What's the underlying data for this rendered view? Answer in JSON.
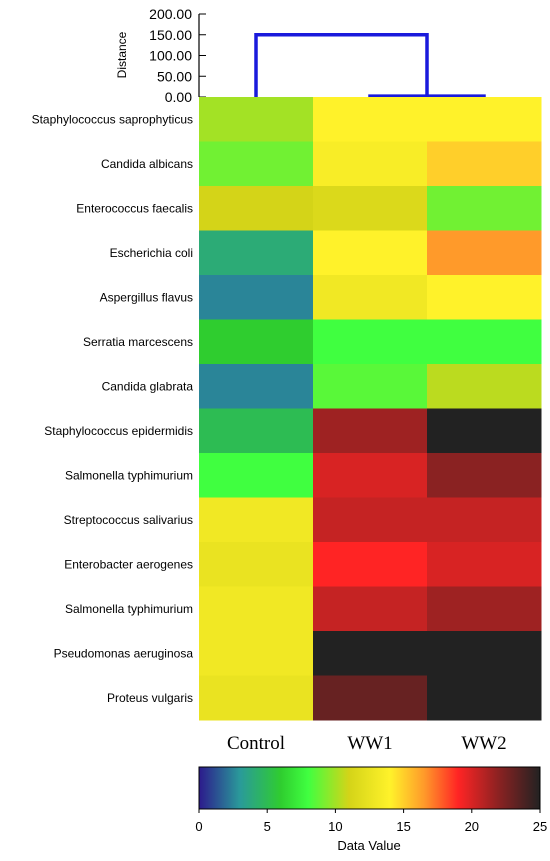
{
  "chart_data": {
    "type": "heatmap",
    "title": "",
    "rows": [
      "Staphylococcus saprophyticus",
      "Candida albicans",
      "Enterococcus faecalis",
      "Escherichia coli",
      "Aspergillus flavus",
      "Serratia marcescens",
      "Candida glabrata",
      "Staphylococcus epidermidis",
      "Salmonella typhimurium",
      "Streptococcus salivarius",
      "Enterobacter aerogenes",
      "Salmonella typhimurium",
      "Pseudomonas aeruginosa",
      "Proteus vulgaris"
    ],
    "columns": [
      "Control",
      "WW1",
      "WW2"
    ],
    "values": [
      [
        10.0,
        14.0,
        14.0
      ],
      [
        9.0,
        13.5,
        15.0
      ],
      [
        11.0,
        11.5,
        9.0
      ],
      [
        4.0,
        14.0,
        16.5
      ],
      [
        2.5,
        13.0,
        14.0
      ],
      [
        6.0,
        8.0,
        8.0
      ],
      [
        2.5,
        8.5,
        10.5
      ],
      [
        5.0,
        21.5,
        25.0
      ],
      [
        8.0,
        20.0,
        22.0
      ],
      [
        13.0,
        20.5,
        20.5
      ],
      [
        12.5,
        19.0,
        20.0
      ],
      [
        13.0,
        20.5,
        21.5
      ],
      [
        13.0,
        25.0,
        25.0
      ],
      [
        12.5,
        23.0,
        25.0
      ]
    ],
    "dendrogram": {
      "axis_label": "Distance",
      "ticks": [
        "200.00",
        "150.00",
        "100.00",
        "50.00",
        "0.00"
      ],
      "ylim": [
        0,
        200
      ],
      "merges": [
        {
          "left": "WW1",
          "right": "WW2",
          "height": 2
        },
        {
          "left": "Control",
          "right": "WW1+WW2",
          "height": 150
        }
      ],
      "color": "#1a1adc"
    },
    "colorbar": {
      "label": "Data Value",
      "ticks": [
        "0",
        "5",
        "10",
        "15",
        "20",
        "25"
      ],
      "range": [
        0,
        25
      ],
      "stops": [
        {
          "v": 0,
          "c": "#2c1a8c"
        },
        {
          "v": 3,
          "c": "#2a9a9a"
        },
        {
          "v": 6,
          "c": "#2fcd2f"
        },
        {
          "v": 8,
          "c": "#40ff40"
        },
        {
          "v": 11,
          "c": "#d4d418"
        },
        {
          "v": 14,
          "c": "#fff22a"
        },
        {
          "v": 16.5,
          "c": "#ff9a2a"
        },
        {
          "v": 19,
          "c": "#ff2424"
        },
        {
          "v": 22,
          "c": "#8a2222"
        },
        {
          "v": 25,
          "c": "#222222"
        }
      ]
    }
  }
}
